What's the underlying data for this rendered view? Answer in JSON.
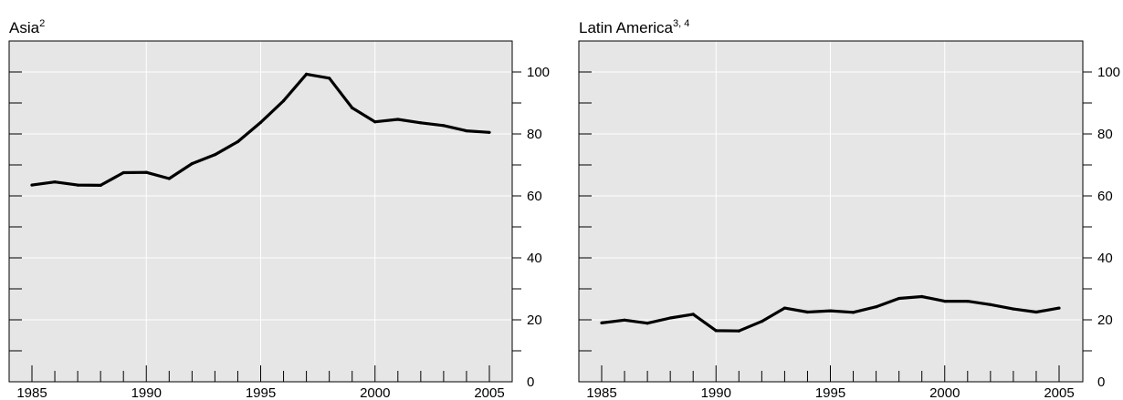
{
  "chart_data": [
    {
      "type": "line",
      "title": "Asia",
      "title_superscript": "2",
      "x_ticks": [
        1985,
        1990,
        1995,
        2000,
        2005
      ],
      "y_ticks": [
        0,
        20,
        40,
        60,
        80,
        100
      ],
      "xlim": [
        1985,
        2005
      ],
      "ylim": [
        0,
        110
      ],
      "grid": true,
      "x": [
        1985,
        1986,
        1987,
        1988,
        1989,
        1990,
        1991,
        1992,
        1993,
        1994,
        1995,
        1996,
        1997,
        1998,
        1999,
        2000,
        2001,
        2002,
        2003,
        2004,
        2005
      ],
      "values": [
        63.5,
        64.5,
        63.5,
        63.4,
        67.5,
        67.6,
        65.6,
        70.4,
        73.3,
        77.5,
        83.7,
        90.7,
        99.3,
        98.0,
        88.4,
        83.9,
        84.7,
        83.6,
        82.7,
        81.0,
        80.5
      ]
    },
    {
      "type": "line",
      "title": "Latin America",
      "title_superscript": "3, 4",
      "x_ticks": [
        1985,
        1990,
        1995,
        2000,
        2005
      ],
      "y_ticks": [
        0,
        20,
        40,
        60,
        80,
        100
      ],
      "xlim": [
        1985,
        2005
      ],
      "ylim": [
        0,
        110
      ],
      "grid": true,
      "x": [
        1985,
        1986,
        1987,
        1988,
        1989,
        1990,
        1991,
        1992,
        1993,
        1994,
        1995,
        1996,
        1997,
        1998,
        1999,
        2000,
        2001,
        2002,
        2003,
        2004,
        2005
      ],
      "values": [
        19.0,
        19.9,
        18.9,
        20.6,
        21.8,
        16.5,
        16.4,
        19.5,
        23.8,
        22.5,
        22.9,
        22.4,
        24.2,
        26.9,
        27.5,
        26.0,
        26.0,
        24.9,
        23.5,
        22.5,
        23.8
      ]
    }
  ],
  "colors": {
    "plot_bg": "#e6e6e6",
    "grid": "#ffffff",
    "line": "#000000",
    "axis": "#000000"
  }
}
